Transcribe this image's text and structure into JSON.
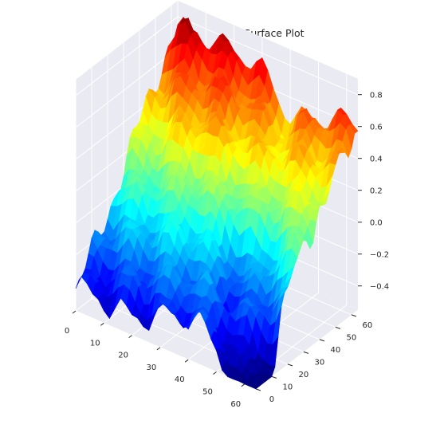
{
  "chart_data": {
    "type": "surface",
    "title": "Diamond Square 3D Surface Plot",
    "xlabel": "",
    "ylabel": "",
    "zlabel": "",
    "x_ticks": [
      0,
      10,
      20,
      30,
      40,
      50,
      60
    ],
    "y_ticks": [
      0,
      10,
      20,
      30,
      40,
      50,
      60
    ],
    "z_ticks": [
      -0.4,
      -0.2,
      0.0,
      0.2,
      0.4,
      0.6,
      0.8
    ],
    "x_tick_labels": [
      "0",
      "10",
      "20",
      "30",
      "40",
      "50",
      "60"
    ],
    "y_tick_labels": [
      "0",
      "10",
      "20",
      "30",
      "40",
      "50",
      "60"
    ],
    "z_tick_labels": [
      "−0.4",
      "−0.2",
      "0.0",
      "0.2",
      "0.4",
      "0.6",
      "0.8"
    ],
    "xlim": [
      0,
      64
    ],
    "ylim": [
      0,
      64
    ],
    "zlim": [
      -0.55,
      0.9
    ],
    "colormap": "jet",
    "grid": true,
    "background_color": "#eaeaf2",
    "grid_color": "#ffffff",
    "surface_summary": {
      "grid_size": 65,
      "z_min": -0.55,
      "z_max": 0.88,
      "corner_x0_y0": -0.42,
      "corner_x64_y0": -0.55,
      "corner_x0_y64": 0.82,
      "corner_x64_y64": 0.62
    }
  }
}
